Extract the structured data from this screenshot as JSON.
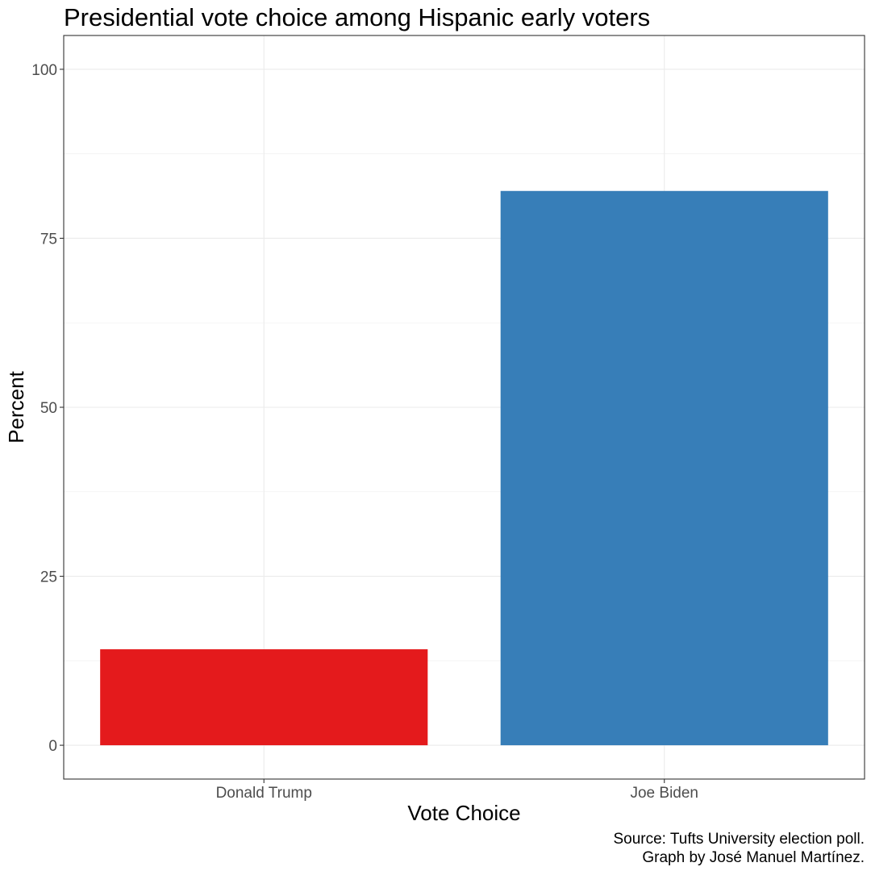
{
  "chart_data": {
    "type": "bar",
    "title": "Presidential vote choice among Hispanic early voters",
    "xlabel": "Vote Choice",
    "ylabel": "Percent",
    "categories": [
      "Donald Trump",
      "Joe Biden"
    ],
    "values": [
      14.2,
      82
    ],
    "colors": [
      "#E41A1C",
      "#377EB8"
    ],
    "ylim": [
      -5,
      105
    ],
    "yticks": [
      0,
      25,
      50,
      75,
      100
    ],
    "grid": true,
    "caption_lines": [
      "Source: Tufts University election poll.",
      "Graph by José Manuel Martínez."
    ]
  }
}
